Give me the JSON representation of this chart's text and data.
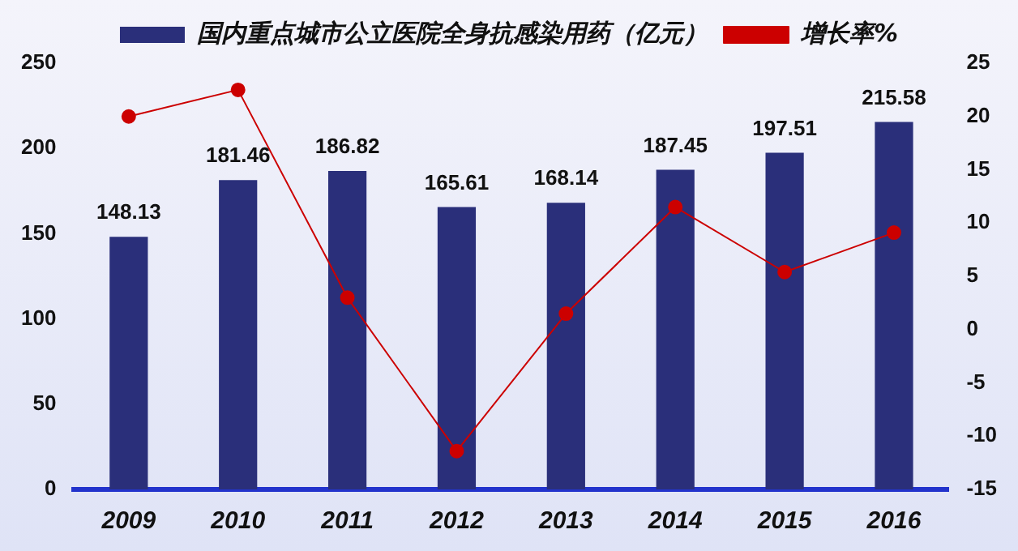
{
  "chart_data": {
    "type": "bar",
    "categories": [
      "2009",
      "2010",
      "2011",
      "2012",
      "2013",
      "2014",
      "2015",
      "2016"
    ],
    "series": [
      {
        "name": "国内重点城市公立医院全身抗感染用药（亿元）",
        "color": "#2a2f7a",
        "values": [
          148.13,
          181.46,
          186.82,
          165.61,
          168.14,
          187.45,
          197.51,
          215.58
        ],
        "value_labels": [
          "148.13",
          "181.46",
          "186.82",
          "165.61",
          "168.14",
          "187.45",
          "197.51",
          "215.58"
        ]
      },
      {
        "name": "增长率%",
        "type": "line",
        "axis": "y2",
        "color": "#cc0000",
        "values": [
          20.0,
          22.5,
          3.0,
          -11.4,
          1.5,
          11.5,
          5.4,
          9.1
        ]
      }
    ],
    "ylim": [
      0,
      250
    ],
    "yticks": [
      0,
      50,
      100,
      150,
      200,
      250
    ],
    "y2lim": [
      -15,
      25
    ],
    "y2ticks": [
      -15,
      -10,
      -5,
      0,
      5,
      10,
      15,
      20,
      25
    ],
    "grid": false,
    "legend": "top",
    "marker": "circle"
  }
}
